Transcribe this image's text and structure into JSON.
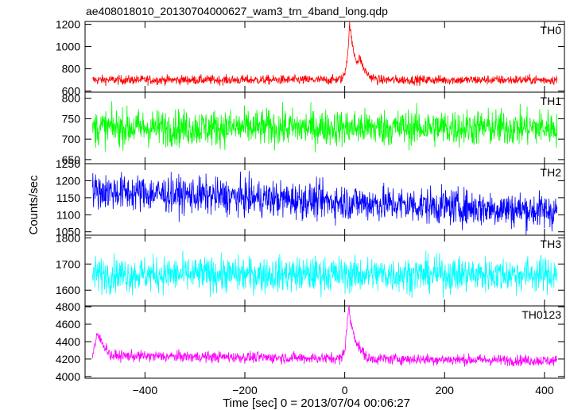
{
  "chart_data": {
    "type": "line",
    "title": "ae408018010_20130704000627_wam3_trn_4band_long.qdp",
    "xlabel": "Time [sec] 0 = 2013/07/04 00:06:27",
    "ylabel": "Counts/sec",
    "xlim": [
      -520,
      440
    ],
    "xticks": [
      -400,
      -200,
      0,
      200,
      400
    ],
    "x_range": [
      -505,
      425
    ],
    "panels": [
      {
        "name": "TH0",
        "color": "#ff0000",
        "ylim": [
          590,
          1225
        ],
        "yticks": [
          600,
          800,
          1000,
          1200
        ],
        "baseline": 700,
        "noise": 30,
        "burst": [
          {
            "t": -25,
            "v": 700
          },
          {
            "t": -5,
            "v": 710
          },
          {
            "t": 0,
            "v": 760
          },
          {
            "t": 5,
            "v": 900
          },
          {
            "t": 8,
            "v": 1050
          },
          {
            "t": 10,
            "v": 1220
          },
          {
            "t": 13,
            "v": 1080
          },
          {
            "t": 18,
            "v": 950
          },
          {
            "t": 25,
            "v": 860
          },
          {
            "t": 30,
            "v": 900
          },
          {
            "t": 38,
            "v": 800
          },
          {
            "t": 50,
            "v": 730
          },
          {
            "t": 65,
            "v": 705
          }
        ]
      },
      {
        "name": "TH1",
        "color": "#00ff00",
        "ylim": [
          640,
          815
        ],
        "yticks": [
          650,
          700,
          750,
          800
        ],
        "baseline": 728,
        "noise": 32
      },
      {
        "name": "TH2",
        "color": "#0000ff",
        "ylim": [
          1040,
          1250
        ],
        "yticks": [
          1050,
          1100,
          1150,
          1200,
          1250
        ],
        "baseline_start": 1170,
        "baseline_end": 1110,
        "noise": 38
      },
      {
        "name": "TH3",
        "color": "#00ffff",
        "ylim": [
          1540,
          1810
        ],
        "yticks": [
          1600,
          1700,
          1800
        ],
        "baseline": 1660,
        "noise": 48
      },
      {
        "name": "TH0123",
        "color": "#ff00ff",
        "ylim": [
          3980,
          4810
        ],
        "yticks": [
          4000,
          4200,
          4400,
          4600,
          4800
        ],
        "baseline": 4240,
        "baseline_end": 4180,
        "noise": 45,
        "burst": [
          {
            "t": -505,
            "v": 4250
          },
          {
            "t": -495,
            "v": 4480
          },
          {
            "t": -485,
            "v": 4380
          },
          {
            "t": -470,
            "v": 4260
          }
        ],
        "burst2": [
          {
            "t": -5,
            "v": 4240
          },
          {
            "t": 0,
            "v": 4300
          },
          {
            "t": 5,
            "v": 4620
          },
          {
            "t": 8,
            "v": 4780
          },
          {
            "t": 12,
            "v": 4620
          },
          {
            "t": 20,
            "v": 4450
          },
          {
            "t": 30,
            "v": 4320
          },
          {
            "t": 45,
            "v": 4220
          }
        ]
      }
    ]
  }
}
